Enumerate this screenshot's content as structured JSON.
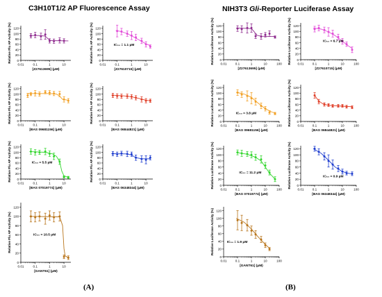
{
  "figure": {
    "left_title": "C3H10T1/2 AP Fluorescence Assay",
    "right_title_pre": "NIH3T3 ",
    "right_title_italic": "Gli",
    "right_title_post": "-Reporter Luciferase Assay",
    "label_a": "(A)",
    "label_b": "(B)"
  },
  "chart_data": [
    {
      "type": "line",
      "panel": "A",
      "compound": "Z27613695",
      "xlabel": "[Z27613695] (μM)",
      "ylabel": "Relative Flu AP Activity (%)",
      "xscale": "log",
      "xlim": [
        0.01,
        30
      ],
      "xticks": [
        "0.01",
        "0.1",
        "1",
        "10"
      ],
      "ylim": [
        0,
        130
      ],
      "yticks": [
        0,
        20,
        40,
        60,
        80,
        100,
        120
      ],
      "color": "#8e2a8e",
      "x": [
        0.05,
        0.1,
        0.25,
        0.5,
        1,
        2,
        5,
        10
      ],
      "y": [
        92,
        95,
        90,
        97,
        73,
        72,
        75,
        73
      ],
      "err": [
        8,
        10,
        12,
        18,
        8,
        8,
        10,
        8
      ],
      "fit": [
        [
          0.04,
          93
        ],
        [
          0.2,
          93
        ],
        [
          0.5,
          91
        ],
        [
          0.8,
          80
        ],
        [
          1.2,
          74
        ],
        [
          20,
          73
        ]
      ],
      "ic50_label": ""
    },
    {
      "type": "line",
      "panel": "A",
      "compound": "Z27610715",
      "xlabel": "[Z27610715] (μM)",
      "ylabel": "Relative Flu AP Activity (%)",
      "xscale": "log",
      "xlim": [
        0.01,
        30
      ],
      "xticks": [
        "0.01",
        "0.1",
        "1",
        "10"
      ],
      "ylim": [
        0,
        130
      ],
      "yticks": [
        0,
        20,
        40,
        60,
        80,
        100,
        120
      ],
      "color": "#e24bd8",
      "x": [
        0.1,
        0.2,
        0.5,
        1,
        2,
        5,
        10,
        20
      ],
      "y": [
        110,
        108,
        100,
        93,
        86,
        73,
        60,
        52
      ],
      "err": [
        22,
        12,
        10,
        15,
        12,
        10,
        10,
        6
      ],
      "fit": [
        [
          0.08,
          112
        ],
        [
          0.2,
          108
        ],
        [
          0.5,
          100
        ],
        [
          1,
          92
        ],
        [
          3,
          78
        ],
        [
          10,
          62
        ],
        [
          20,
          55
        ]
      ],
      "ic50_label": "IC₅₀ = 1.1 μM"
    },
    {
      "type": "line",
      "panel": "A",
      "compound": "BAS 09681156",
      "xlabel": "[BAS 09681156] (μM)",
      "ylabel": "Relative Flu AP Activity (%)",
      "xscale": "log",
      "xlim": [
        0.01,
        30
      ],
      "xticks": [
        "0.01",
        "0.1",
        "1",
        "10"
      ],
      "ylim": [
        0,
        130
      ],
      "yticks": [
        0,
        20,
        40,
        60,
        80,
        100,
        120
      ],
      "color": "#f2a126",
      "x": [
        0.03,
        0.05,
        0.1,
        0.2,
        0.5,
        1,
        2,
        5,
        10,
        20
      ],
      "y": [
        95,
        100,
        103,
        100,
        107,
        105,
        102,
        100,
        80,
        75
      ],
      "err": [
        8,
        6,
        10,
        8,
        6,
        8,
        8,
        10,
        10,
        8
      ],
      "fit": [
        [
          0.03,
          102
        ],
        [
          1,
          102
        ],
        [
          3,
          100
        ],
        [
          5,
          92
        ],
        [
          8,
          80
        ],
        [
          20,
          77
        ]
      ],
      "ic50_label": ""
    },
    {
      "type": "line",
      "panel": "A",
      "compound": "BAS 06844821",
      "xlabel": "[BAS 06844821] (μM)",
      "ylabel": "Relative Flu AP Activity (%)",
      "xscale": "log",
      "xlim": [
        0.01,
        30
      ],
      "xticks": [
        "0.01",
        "0.1",
        "1",
        "10"
      ],
      "ylim": [
        0,
        130
      ],
      "yticks": [
        0,
        20,
        40,
        60,
        80,
        100,
        120
      ],
      "color": "#e0402a",
      "x": [
        0.05,
        0.1,
        0.2,
        0.5,
        1,
        2,
        5,
        10,
        20
      ],
      "y": [
        95,
        93,
        92,
        92,
        90,
        86,
        80,
        75,
        75
      ],
      "err": [
        8,
        8,
        8,
        8,
        8,
        8,
        10,
        8,
        6
      ],
      "fit": [
        [
          0.04,
          96
        ],
        [
          0.3,
          93
        ],
        [
          1,
          90
        ],
        [
          3,
          84
        ],
        [
          10,
          77
        ],
        [
          20,
          75
        ]
      ],
      "ic50_label": ""
    },
    {
      "type": "line",
      "panel": "A",
      "compound": "BAS 07019774",
      "xlabel": "[BAS 07019774] (μM)",
      "ylabel": "Relative Flu AP Activity (%)",
      "xscale": "log",
      "xlim": [
        0.01,
        30
      ],
      "xticks": [
        "0.01",
        "0.1",
        "1",
        "10"
      ],
      "ylim": [
        0,
        130
      ],
      "yticks": [
        0,
        20,
        40,
        60,
        80,
        100,
        120
      ],
      "color": "#33d62e",
      "x": [
        0.05,
        0.1,
        0.2,
        0.5,
        1,
        2,
        5,
        10,
        20
      ],
      "y": [
        103,
        100,
        100,
        103,
        95,
        85,
        65,
        8,
        6
      ],
      "err": [
        10,
        10,
        8,
        12,
        10,
        12,
        10,
        4,
        4
      ],
      "fit": [
        [
          0.04,
          103
        ],
        [
          0.5,
          100
        ],
        [
          1.5,
          95
        ],
        [
          3,
          85
        ],
        [
          5,
          65
        ],
        [
          7,
          30
        ],
        [
          10,
          12
        ],
        [
          20,
          6
        ]
      ],
      "ic50_label": "IC₅₀ = 5.5 μM"
    },
    {
      "type": "line",
      "panel": "A",
      "compound": "BAS 06348344",
      "xlabel": "[BAS 06348344] (μM)",
      "ylabel": "Relative Flu AP Activity (%)",
      "xscale": "log",
      "xlim": [
        0.01,
        30
      ],
      "xticks": [
        "0.01",
        "0.1",
        "1",
        "10"
      ],
      "ylim": [
        0,
        130
      ],
      "yticks": [
        0,
        20,
        40,
        60,
        80,
        100,
        120
      ],
      "color": "#1f3ecf",
      "x": [
        0.05,
        0.1,
        0.2,
        0.5,
        1,
        2,
        5,
        10,
        20
      ],
      "y": [
        95,
        93,
        96,
        94,
        93,
        80,
        75,
        72,
        80
      ],
      "err": [
        8,
        8,
        8,
        10,
        8,
        10,
        12,
        15,
        8
      ],
      "fit": [
        [
          0.04,
          95
        ],
        [
          0.5,
          94
        ],
        [
          1,
          90
        ],
        [
          2,
          80
        ],
        [
          5,
          76
        ],
        [
          20,
          76
        ]
      ],
      "ic50_label": ""
    },
    {
      "type": "line",
      "panel": "A",
      "compound": "GANT61",
      "xlabel": "[GANT61] (μM)",
      "ylabel": "Relative Flu AP Activity (%)",
      "xscale": "log",
      "xlim": [
        0.01,
        30
      ],
      "xticks": [
        "0.01",
        "0.1",
        "1",
        "10"
      ],
      "ylim": [
        0,
        130
      ],
      "yticks": [
        0,
        20,
        40,
        60,
        80,
        100,
        120
      ],
      "color": "#b8741a",
      "x": [
        0.05,
        0.1,
        0.2,
        0.5,
        1,
        2,
        5,
        10,
        20
      ],
      "y": [
        100,
        98,
        100,
        95,
        102,
        98,
        100,
        12,
        10
      ],
      "err": [
        12,
        10,
        10,
        12,
        10,
        10,
        10,
        4,
        4
      ],
      "fit": [
        [
          0.04,
          100
        ],
        [
          5,
          99
        ],
        [
          8,
          80
        ],
        [
          10,
          30
        ],
        [
          12,
          14
        ],
        [
          20,
          10
        ]
      ],
      "ic50_label": "IC₅₀ = 10.5 μM"
    },
    {
      "type": "line",
      "panel": "B",
      "compound": "Z27613695",
      "xlabel": "[Z27613695] (μM)",
      "ylabel": "Relative Luciferase Activity (%)",
      "xscale": "log",
      "xlim": [
        0.01,
        100
      ],
      "xticks": [
        "0.01",
        "0.1",
        "1",
        "10",
        "100"
      ],
      "ylim": [
        0,
        130
      ],
      "yticks": [
        0,
        20,
        40,
        60,
        80,
        100,
        120
      ],
      "color": "#8e2a8e",
      "x": [
        0.1,
        0.2,
        0.5,
        1,
        2,
        5,
        10,
        20,
        50
      ],
      "y": [
        110,
        108,
        112,
        112,
        83,
        82,
        88,
        92,
        80
      ],
      "err": [
        10,
        12,
        18,
        15,
        8,
        10,
        8,
        10,
        4
      ],
      "fit": [
        [
          0.08,
          112
        ],
        [
          1,
          110
        ],
        [
          1.5,
          100
        ],
        [
          2.5,
          86
        ],
        [
          5,
          83
        ],
        [
          50,
          82
        ]
      ],
      "ic50_label": ""
    },
    {
      "type": "line",
      "panel": "B",
      "compound": "Z27610715",
      "xlabel": "[Z27610715] (μM)",
      "ylabel": "Relative Luciferase Activity (%)",
      "xscale": "log",
      "xlim": [
        0.01,
        100
      ],
      "xticks": [
        "0.01",
        "0.1",
        "1",
        "10",
        "100"
      ],
      "ylim": [
        0,
        130
      ],
      "yticks": [
        0,
        20,
        40,
        60,
        80,
        100,
        120
      ],
      "color": "#e24bd8",
      "x": [
        0.1,
        0.2,
        0.5,
        1,
        2,
        5,
        10,
        20,
        50
      ],
      "y": [
        108,
        112,
        105,
        98,
        92,
        80,
        65,
        55,
        35
      ],
      "err": [
        10,
        10,
        10,
        15,
        12,
        10,
        10,
        8,
        10
      ],
      "fit": [
        [
          0.08,
          112
        ],
        [
          0.3,
          108
        ],
        [
          1,
          98
        ],
        [
          3,
          85
        ],
        [
          10,
          65
        ],
        [
          30,
          47
        ],
        [
          50,
          40
        ]
      ],
      "ic50_label": "IC₅₀ = 6.7 μM"
    },
    {
      "type": "line",
      "panel": "B",
      "compound": "BAS 09681156",
      "xlabel": "[BAS 09681156] (μM)",
      "ylabel": "Relative Luciferase Activity (%)",
      "xscale": "log",
      "xlim": [
        0.01,
        100
      ],
      "xticks": [
        "0.01",
        "0.1",
        "1",
        "10",
        "100"
      ],
      "ylim": [
        0,
        130
      ],
      "yticks": [
        0,
        20,
        40,
        60,
        80,
        100,
        120
      ],
      "color": "#f2a126",
      "x": [
        0.1,
        0.2,
        0.5,
        1,
        2,
        5,
        10,
        20,
        50
      ],
      "y": [
        102,
        95,
        90,
        82,
        70,
        55,
        45,
        32,
        28
      ],
      "err": [
        10,
        10,
        18,
        20,
        12,
        10,
        8,
        6,
        4
      ],
      "fit": [
        [
          0.08,
          103
        ],
        [
          0.3,
          97
        ],
        [
          1,
          85
        ],
        [
          3,
          65
        ],
        [
          10,
          45
        ],
        [
          30,
          33
        ],
        [
          50,
          30
        ]
      ],
      "ic50_label": "IC₅₀ = 3.8 μM"
    },
    {
      "type": "line",
      "panel": "B",
      "compound": "BAS 06844821",
      "xlabel": "[BAS 06844821] (μM)",
      "ylabel": "Relative Luciferase Activity (%)",
      "xscale": "log",
      "xlim": [
        0.01,
        100
      ],
      "xticks": [
        "0.01",
        "0.1",
        "1",
        "10",
        "100"
      ],
      "ylim": [
        0,
        130
      ],
      "yticks": [
        0,
        20,
        40,
        60,
        80,
        100,
        120
      ],
      "color": "#e0402a",
      "x": [
        0.1,
        0.2,
        0.5,
        1,
        2,
        5,
        10,
        20,
        50
      ],
      "y": [
        92,
        70,
        60,
        58,
        55,
        55,
        55,
        52,
        50
      ],
      "err": [
        10,
        8,
        6,
        5,
        5,
        5,
        5,
        5,
        5
      ],
      "fit": [
        [
          0.09,
          95
        ],
        [
          0.2,
          72
        ],
        [
          0.4,
          62
        ],
        [
          1,
          57
        ],
        [
          10,
          54
        ],
        [
          50,
          52
        ]
      ],
      "ic50_label": ""
    },
    {
      "type": "line",
      "panel": "B",
      "compound": "BAS 07019774",
      "xlabel": "[BAS 07019774] (μM)",
      "ylabel": "Relative Luciferase Activity (%)",
      "xscale": "log",
      "xlim": [
        0.01,
        100
      ],
      "xticks": [
        "0.01",
        "0.1",
        "1",
        "10",
        "100"
      ],
      "ylim": [
        0,
        130
      ],
      "yticks": [
        0,
        20,
        40,
        60,
        80,
        100,
        120
      ],
      "color": "#33d62e",
      "x": [
        0.1,
        0.2,
        0.5,
        1,
        2,
        5,
        10,
        20,
        50
      ],
      "y": [
        108,
        105,
        103,
        100,
        92,
        85,
        65,
        42,
        20
      ],
      "err": [
        8,
        10,
        8,
        10,
        10,
        12,
        10,
        8,
        8
      ],
      "fit": [
        [
          0.08,
          108
        ],
        [
          0.5,
          102
        ],
        [
          2,
          92
        ],
        [
          5,
          80
        ],
        [
          10,
          60
        ],
        [
          20,
          40
        ],
        [
          50,
          20
        ]
      ],
      "ic50_label": "IC₅₀ = 11.2 μM"
    },
    {
      "type": "line",
      "panel": "B",
      "compound": "BAS 06348344",
      "xlabel": "[BAS 06348344] (μM)",
      "ylabel": "Relative Luciferase Activity (%)",
      "xscale": "log",
      "xlim": [
        0.01,
        100
      ],
      "xticks": [
        "0.01",
        "0.1",
        "1",
        "10",
        "100"
      ],
      "ylim": [
        0,
        130
      ],
      "yticks": [
        0,
        20,
        40,
        60,
        80,
        100,
        120
      ],
      "color": "#1f3ecf",
      "x": [
        0.1,
        0.2,
        0.5,
        1,
        2,
        5,
        10,
        20,
        50
      ],
      "y": [
        120,
        110,
        95,
        80,
        68,
        55,
        45,
        40,
        38
      ],
      "err": [
        8,
        10,
        12,
        20,
        15,
        10,
        8,
        6,
        6
      ],
      "fit": [
        [
          0.08,
          120
        ],
        [
          0.3,
          105
        ],
        [
          1,
          82
        ],
        [
          3,
          60
        ],
        [
          10,
          45
        ],
        [
          30,
          39
        ],
        [
          50,
          38
        ]
      ],
      "ic50_label": "IC₅₀ = 0.9 μM"
    },
    {
      "type": "line",
      "panel": "B",
      "compound": "GANT61",
      "xlabel": "[GANT61] (μM)",
      "ylabel": "Relative Luciferase Activity (%)",
      "xscale": "log",
      "xlim": [
        0.01,
        100
      ],
      "xticks": [
        "0.01",
        "0.1",
        "1",
        "10",
        "100"
      ],
      "ylim": [
        0,
        130
      ],
      "yticks": [
        0,
        20,
        40,
        60,
        80,
        100,
        120
      ],
      "color": "#b8741a",
      "x": [
        0.1,
        0.2,
        0.5,
        1,
        2,
        5,
        10,
        20
      ],
      "y": [
        95,
        88,
        82,
        68,
        58,
        45,
        30,
        20
      ],
      "err": [
        25,
        20,
        15,
        12,
        10,
        8,
        6,
        4
      ],
      "fit": [
        [
          0.08,
          100
        ],
        [
          0.3,
          90
        ],
        [
          1,
          72
        ],
        [
          3,
          52
        ],
        [
          10,
          32
        ],
        [
          20,
          22
        ]
      ],
      "ic50_label": "IC₅₀ = 1.9 μM"
    }
  ]
}
